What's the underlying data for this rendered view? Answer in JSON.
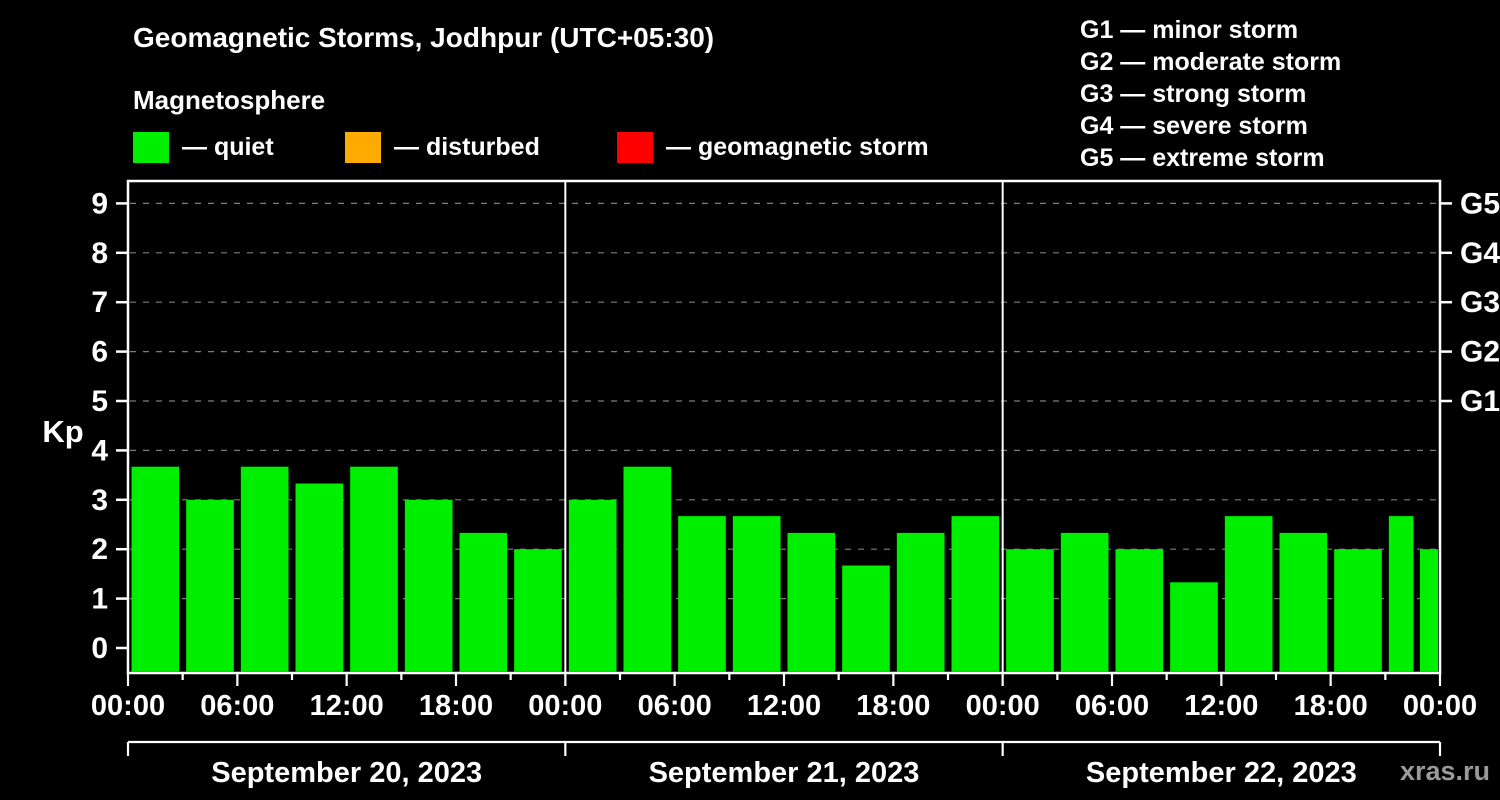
{
  "title": "Geomagnetic Storms, Jodhpur (UTC+05:30)",
  "subtitle": "Magnetosphere",
  "legend": {
    "items": [
      {
        "name": "quiet",
        "label": "— quiet",
        "color": "#00ee00"
      },
      {
        "name": "disturbed",
        "label": "— disturbed",
        "color": "#ffaa00"
      },
      {
        "name": "storm",
        "label": "— geomagnetic storm",
        "color": "#ff0000"
      }
    ]
  },
  "storm_legend": [
    "G1 — minor storm",
    "G2 — moderate storm",
    "G3 — strong storm",
    "G4 — severe storm",
    "G5 — extreme storm"
  ],
  "watermark": "xras.ru",
  "chart_data": {
    "type": "bar",
    "title": "Geomagnetic Storms, Jodhpur (UTC+05:30)",
    "ylabel": "Kp",
    "ylim": [
      0,
      9.5
    ],
    "yticks": [
      0,
      1,
      2,
      3,
      4,
      5,
      6,
      7,
      8,
      9
    ],
    "grid": "dashed-horizontal",
    "right_labels": [
      {
        "text": "G1",
        "value": 5
      },
      {
        "text": "G2",
        "value": 6
      },
      {
        "text": "G3",
        "value": 7
      },
      {
        "text": "G4",
        "value": 8
      },
      {
        "text": "G5",
        "value": 9
      }
    ],
    "x_tick_labels": [
      "00:00",
      "06:00",
      "12:00",
      "18:00",
      "00:00",
      "06:00",
      "12:00",
      "18:00",
      "00:00",
      "06:00",
      "12:00",
      "18:00",
      "00:00"
    ],
    "bar_interval_hours": 3,
    "days": [
      {
        "date": "September 20, 2023",
        "values": [
          3.67,
          3.0,
          3.67,
          3.33,
          3.67,
          3.0,
          2.33,
          2.0
        ]
      },
      {
        "date": "September 21, 2023",
        "values": [
          3.0,
          3.67,
          2.67,
          2.67,
          2.33,
          1.67,
          2.33,
          2.67
        ]
      },
      {
        "date": "September 22, 2023",
        "values": [
          2.0,
          2.33,
          2.0,
          1.33,
          2.67,
          2.33,
          2.0,
          2.67
        ]
      }
    ],
    "partial_next_value": 2.0,
    "colors": {
      "quiet": "#00ee00",
      "disturbed": "#ffaa00",
      "storm": "#ff0000"
    },
    "thresholds": {
      "disturbed_from": 4.33,
      "storm_from": 5.0
    }
  }
}
